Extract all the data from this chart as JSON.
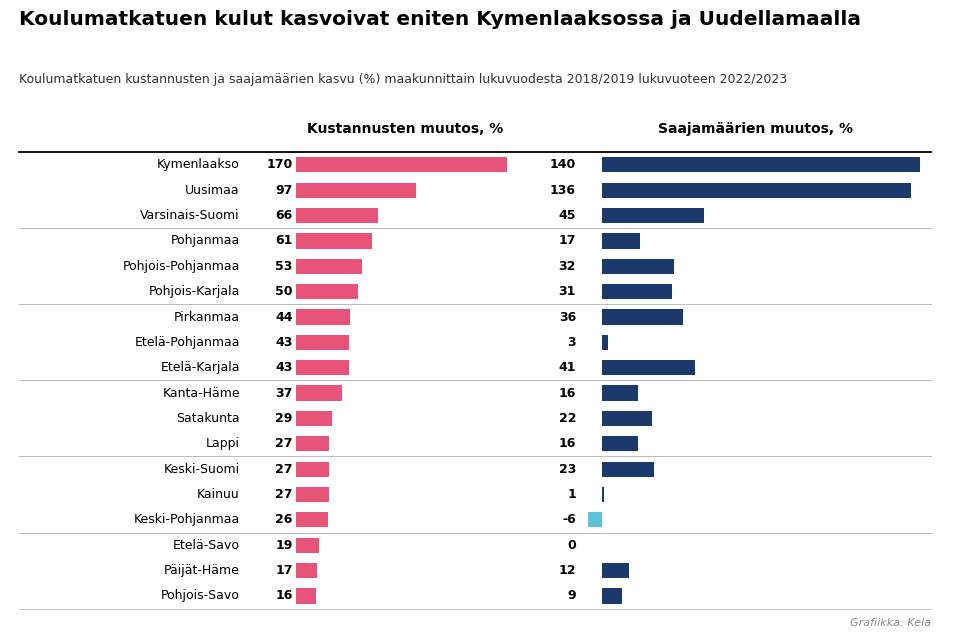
{
  "title": "Koulumatkatuen kulut kasvoivat eniten Kymenlaaksossa ja Uudellamaalla",
  "subtitle": "Koulumatkatuen kustannusten ja saajamäärien kasvu (%) maakunnittain lukuvuodesta 2018/2019 lukuvuoteen 2022/2023",
  "col1_header": "Kustannusten muutos, %",
  "col2_header": "Saajamäärien muutos, %",
  "regions": [
    "Kymenlaakso",
    "Uusimaa",
    "Varsinais-Suomi",
    "Pohjanmaa",
    "Pohjois-Pohjanmaa",
    "Pohjois-Karjala",
    "Pirkanmaa",
    "Etelä-Pohjanmaa",
    "Etelä-Karjala",
    "Kanta-Häme",
    "Satakunta",
    "Lappi",
    "Keski-Suomi",
    "Kainuu",
    "Keski-Pohjanmaa",
    "Etelä-Savo",
    "Päijät-Häme",
    "Pohjois-Savo"
  ],
  "cost_values": [
    170,
    97,
    66,
    61,
    53,
    50,
    44,
    43,
    43,
    37,
    29,
    27,
    27,
    27,
    26,
    19,
    17,
    16
  ],
  "recipient_values": [
    140,
    136,
    45,
    17,
    32,
    31,
    36,
    3,
    41,
    16,
    22,
    16,
    23,
    1,
    -6,
    0,
    12,
    9
  ],
  "cost_color": "#E8537A",
  "recipient_color_pos": "#1B3A6B",
  "recipient_color_neg": "#5BC4D8",
  "divider_rows": [
    3,
    6,
    9,
    12,
    15
  ],
  "background_color": "#FFFFFF",
  "footer": "Grafiikka: Kela",
  "cost_max": 175,
  "recip_max": 145,
  "recip_min": -10
}
